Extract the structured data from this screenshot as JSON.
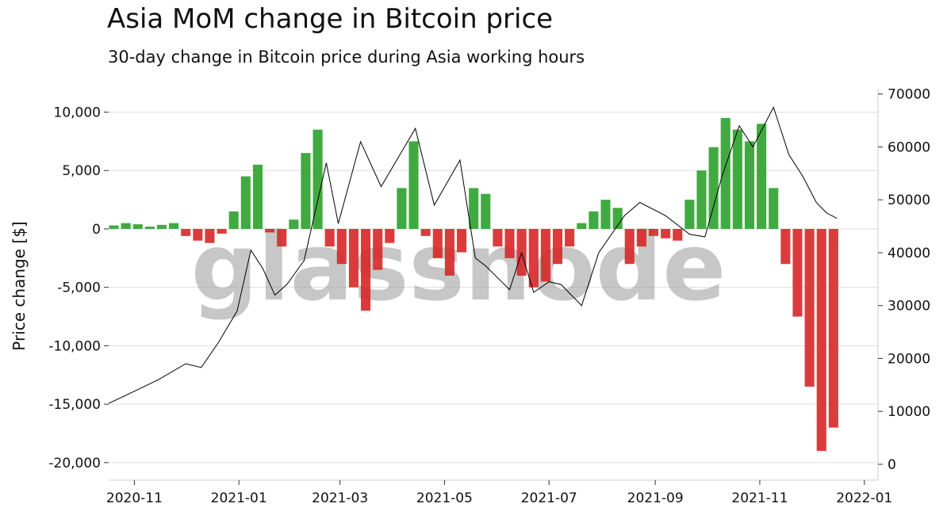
{
  "chart_data": {
    "type": "bar",
    "title": "Asia MoM change in Bitcoin price",
    "subtitle": "30-day change in Bitcoin price during Asia working hours",
    "ylabel": "Price change [$]",
    "watermark": "glassnode",
    "ylim": [
      -21500,
      12000
    ],
    "y2lim": [
      -3000,
      71000
    ],
    "xlim": [
      "2020-10-17",
      "2022-01-09"
    ],
    "left_ticks": [
      {
        "value": 10000,
        "label": "10,000"
      },
      {
        "value": 5000,
        "label": "5,000"
      },
      {
        "value": 0,
        "label": "0"
      },
      {
        "value": -5000,
        "label": "-5,000"
      },
      {
        "value": -10000,
        "label": "-10,000"
      },
      {
        "value": -15000,
        "label": "-15,000"
      },
      {
        "value": -20000,
        "label": "-20,000"
      }
    ],
    "right_ticks": [
      {
        "value": 70000,
        "label": "70000"
      },
      {
        "value": 60000,
        "label": "60000"
      },
      {
        "value": 50000,
        "label": "50000"
      },
      {
        "value": 40000,
        "label": "40000"
      },
      {
        "value": 30000,
        "label": "30000"
      },
      {
        "value": 20000,
        "label": "20000"
      },
      {
        "value": 10000,
        "label": "10000"
      },
      {
        "value": 0,
        "label": "0"
      }
    ],
    "x_ticks": [
      {
        "date": "2020-11-01",
        "label": "2020-11"
      },
      {
        "date": "2021-01-01",
        "label": "2021-01"
      },
      {
        "date": "2021-03-01",
        "label": "2021-03"
      },
      {
        "date": "2021-05-01",
        "label": "2021-05"
      },
      {
        "date": "2021-07-01",
        "label": "2021-07"
      },
      {
        "date": "2021-09-01",
        "label": "2021-09"
      },
      {
        "date": "2021-11-01",
        "label": "2021-11"
      },
      {
        "date": "2022-01-01",
        "label": "2022-01"
      }
    ],
    "colors": {
      "positive": "#2ca02c",
      "negative": "#d62728",
      "price_line": "#000000",
      "grid": "#dddddd"
    },
    "series": [
      {
        "name": "Price change",
        "axis": "left",
        "x": [
          "2020-10-20",
          "2020-10-27",
          "2020-11-03",
          "2020-11-10",
          "2020-11-17",
          "2020-11-24",
          "2020-12-01",
          "2020-12-08",
          "2020-12-15",
          "2020-12-22",
          "2020-12-29",
          "2021-01-05",
          "2021-01-12",
          "2021-01-19",
          "2021-01-26",
          "2021-02-02",
          "2021-02-09",
          "2021-02-16",
          "2021-02-23",
          "2021-03-02",
          "2021-03-09",
          "2021-03-16",
          "2021-03-23",
          "2021-03-30",
          "2021-04-06",
          "2021-04-13",
          "2021-04-20",
          "2021-04-27",
          "2021-05-04",
          "2021-05-11",
          "2021-05-18",
          "2021-05-25",
          "2021-06-01",
          "2021-06-08",
          "2021-06-15",
          "2021-06-22",
          "2021-06-29",
          "2021-07-06",
          "2021-07-13",
          "2021-07-20",
          "2021-07-27",
          "2021-08-03",
          "2021-08-10",
          "2021-08-17",
          "2021-08-24",
          "2021-08-31",
          "2021-09-07",
          "2021-09-14",
          "2021-09-21",
          "2021-09-28",
          "2021-10-05",
          "2021-10-12",
          "2021-10-19",
          "2021-10-26",
          "2021-11-02",
          "2021-11-09",
          "2021-11-16",
          "2021-11-23",
          "2021-11-30",
          "2021-12-07",
          "2021-12-14"
        ],
        "values": [
          300,
          500,
          400,
          200,
          350,
          500,
          -600,
          -1000,
          -1200,
          -400,
          1500,
          4500,
          5500,
          -300,
          -1500,
          800,
          6500,
          8500,
          -1500,
          -3000,
          -5000,
          -7000,
          -3500,
          -1200,
          3500,
          7500,
          -600,
          -2500,
          -4000,
          -2000,
          3500,
          3000,
          -1500,
          -2500,
          -4000,
          -5000,
          -4500,
          -3000,
          -1500,
          500,
          1500,
          2500,
          1800,
          -3000,
          -1500,
          -600,
          -800,
          -1000,
          2500,
          5000,
          7000,
          9500,
          8500,
          7500,
          9000,
          3500,
          -3000,
          -7500,
          -13500,
          -19000,
          -17000
        ]
      },
      {
        "name": "Price",
        "axis": "right",
        "x": [
          "2020-10-17",
          "2020-11-01",
          "2020-11-15",
          "2020-12-01",
          "2020-12-10",
          "2020-12-20",
          "2020-12-31",
          "2021-01-08",
          "2021-01-15",
          "2021-01-22",
          "2021-01-29",
          "2021-02-08",
          "2021-02-21",
          "2021-02-28",
          "2021-03-13",
          "2021-03-25",
          "2021-04-14",
          "2021-04-25",
          "2021-05-10",
          "2021-05-19",
          "2021-05-25",
          "2021-06-08",
          "2021-06-15",
          "2021-06-22",
          "2021-07-01",
          "2021-07-08",
          "2021-07-20",
          "2021-07-30",
          "2021-08-14",
          "2021-08-23",
          "2021-09-07",
          "2021-09-21",
          "2021-09-30",
          "2021-10-10",
          "2021-10-20",
          "2021-10-28",
          "2021-11-09",
          "2021-11-18",
          "2021-11-26",
          "2021-12-04",
          "2021-12-10",
          "2021-12-16"
        ],
        "values": [
          11500,
          13800,
          16000,
          19000,
          18300,
          23000,
          29000,
          40500,
          37000,
          32000,
          34000,
          38500,
          57000,
          45500,
          61000,
          52500,
          63500,
          49000,
          57500,
          39000,
          37500,
          33000,
          40000,
          32500,
          34500,
          34000,
          30000,
          40000,
          47000,
          49500,
          47000,
          43500,
          43000,
          54500,
          64000,
          60000,
          67500,
          58500,
          54500,
          49500,
          47500,
          46500
        ]
      }
    ]
  }
}
